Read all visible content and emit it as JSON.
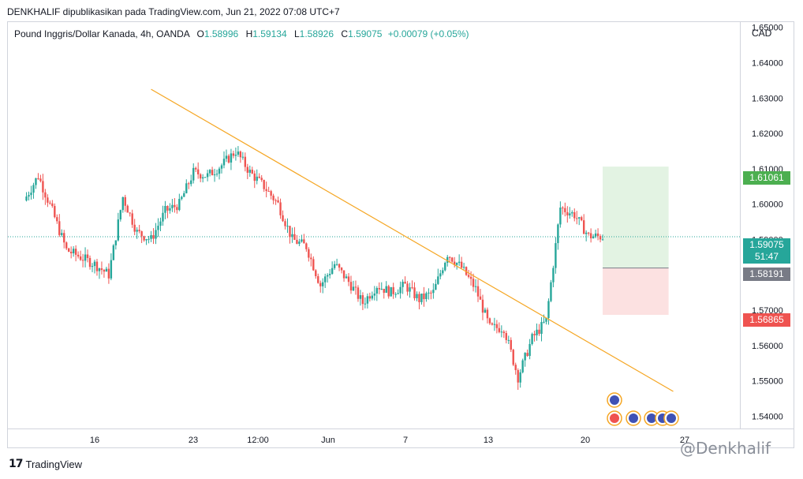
{
  "header": {
    "credit": "DENKHALIF dipublikasikan pada TradingView.com, Jun 21, 2022 07:08 UTC+7"
  },
  "legend": {
    "symbol": "Pound Inggris/Dollar Kanada, 4h, OANDA",
    "o_label": "O",
    "o_value": "1.58996",
    "h_label": "H",
    "h_value": "1.59134",
    "l_label": "L",
    "l_value": "1.58926",
    "c_label": "C",
    "c_value": "1.59075",
    "change": "+0.00079 (+0.05%)"
  },
  "currency": "CAD",
  "price_badges": {
    "target": "1.61061",
    "last_price": "1.59075",
    "countdown": "51:47",
    "entry": "1.58191",
    "stop": "1.56865"
  },
  "footer": {
    "brand": "TradingView",
    "watermark": "@Denkhalif"
  },
  "colors": {
    "up": "#26a69a",
    "down": "#ef5350",
    "trendline": "#f5a623",
    "target_zone": "#e3f3e3",
    "stop_zone": "#fce1e1"
  },
  "chart_data": {
    "type": "candlestick",
    "title": "Pound Inggris/Dollar Kanada, 4h, OANDA",
    "y_ticks": [
      "1.65000",
      "1.64000",
      "1.63000",
      "1.62000",
      "1.61000",
      "1.60000",
      "1.59000",
      "1.58000",
      "1.57000",
      "1.56000",
      "1.55000",
      "1.54000"
    ],
    "y_tick_values": [
      1.65,
      1.64,
      1.63,
      1.62,
      1.61,
      1.6,
      1.59,
      1.58,
      1.57,
      1.56,
      1.55,
      1.54
    ],
    "x_ticks": [
      "16",
      "23",
      "12:00",
      "Jun",
      "7",
      "13",
      "20",
      "27"
    ],
    "ylim": [
      1.5365,
      1.6515
    ],
    "grid": false,
    "trendline": {
      "from": {
        "date": "2022-05-20",
        "price": 1.6325
      },
      "to": {
        "date": "2022-06-26",
        "price": 1.547
      }
    },
    "position": {
      "entry": 1.58191,
      "target": 1.61061,
      "stop": 1.56865,
      "start": "2022-06-21",
      "end": "2022-06-25"
    },
    "last_price": 1.59075,
    "anchors": [
      {
        "date": "2022-05-11",
        "price": 1.601
      },
      {
        "date": "2022-05-12",
        "price": 1.608
      },
      {
        "date": "2022-05-13",
        "price": 1.598
      },
      {
        "date": "2022-05-14",
        "price": 1.587
      },
      {
        "date": "2022-05-16",
        "price": 1.583
      },
      {
        "date": "2022-05-17",
        "price": 1.58
      },
      {
        "date": "2022-05-18",
        "price": 1.602
      },
      {
        "date": "2022-05-19",
        "price": 1.592
      },
      {
        "date": "2022-05-20",
        "price": 1.59
      },
      {
        "date": "2022-05-21",
        "price": 1.598
      },
      {
        "date": "2022-05-22",
        "price": 1.6
      },
      {
        "date": "2022-05-23",
        "price": 1.609
      },
      {
        "date": "2022-05-24",
        "price": 1.608
      },
      {
        "date": "2022-05-25",
        "price": 1.611
      },
      {
        "date": "2022-05-26",
        "price": 1.615
      },
      {
        "date": "2022-05-27",
        "price": 1.609
      },
      {
        "date": "2022-05-28",
        "price": 1.605
      },
      {
        "date": "2022-05-29",
        "price": 1.6
      },
      {
        "date": "2022-05-30",
        "price": 1.59
      },
      {
        "date": "2022-05-31",
        "price": 1.588
      },
      {
        "date": "2022-06-01",
        "price": 1.577
      },
      {
        "date": "2022-06-02",
        "price": 1.583
      },
      {
        "date": "2022-06-03",
        "price": 1.578
      },
      {
        "date": "2022-06-04",
        "price": 1.572
      },
      {
        "date": "2022-06-05",
        "price": 1.577
      },
      {
        "date": "2022-06-06",
        "price": 1.575
      },
      {
        "date": "2022-06-07",
        "price": 1.577
      },
      {
        "date": "2022-06-08",
        "price": 1.573
      },
      {
        "date": "2022-06-09",
        "price": 1.575
      },
      {
        "date": "2022-06-10",
        "price": 1.586
      },
      {
        "date": "2022-06-11",
        "price": 1.582
      },
      {
        "date": "2022-06-12",
        "price": 1.576
      },
      {
        "date": "2022-06-13",
        "price": 1.565
      },
      {
        "date": "2022-06-14",
        "price": 1.565
      },
      {
        "date": "2022-06-15",
        "price": 1.551
      },
      {
        "date": "2022-06-16",
        "price": 1.562
      },
      {
        "date": "2022-06-17",
        "price": 1.567
      },
      {
        "date": "2022-06-18",
        "price": 1.599
      },
      {
        "date": "2022-06-19",
        "price": 1.597
      },
      {
        "date": "2022-06-20",
        "price": 1.591
      },
      {
        "date": "2022-06-21",
        "price": 1.59075
      }
    ]
  }
}
